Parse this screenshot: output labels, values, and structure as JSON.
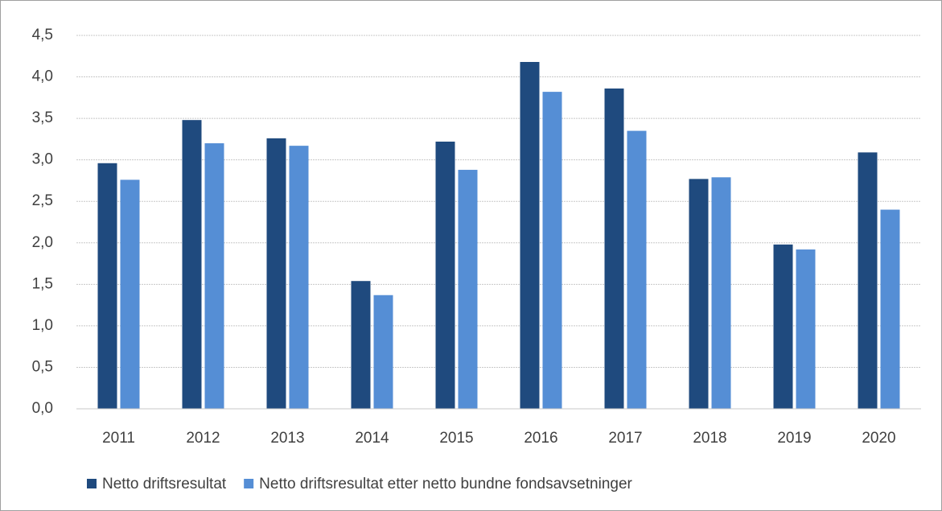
{
  "chart_data": {
    "type": "bar",
    "categories": [
      "2011",
      "2012",
      "2013",
      "2014",
      "2015",
      "2016",
      "2017",
      "2018",
      "2019",
      "2020"
    ],
    "series": [
      {
        "name": "Netto driftsresultat",
        "color": "#1f4a7e",
        "values": [
          2.96,
          3.48,
          3.26,
          1.54,
          3.22,
          4.18,
          3.86,
          2.77,
          1.98,
          3.09
        ]
      },
      {
        "name": "Netto driftsresultat etter netto bundne fondsavsetninger",
        "color": "#558ed5",
        "values": [
          2.76,
          3.2,
          3.17,
          1.37,
          2.88,
          3.82,
          3.35,
          2.79,
          1.92,
          2.4
        ]
      }
    ],
    "ylim": [
      0,
      4.5
    ],
    "yticks": [
      {
        "value": 0,
        "label": "0,0"
      },
      {
        "value": 0.5,
        "label": "0,5"
      },
      {
        "value": 1,
        "label": "1,0"
      },
      {
        "value": 1.5,
        "label": "1,5"
      },
      {
        "value": 2,
        "label": "2,0"
      },
      {
        "value": 2.5,
        "label": "2,5"
      },
      {
        "value": 3,
        "label": "3,0"
      },
      {
        "value": 3.5,
        "label": "3,5"
      },
      {
        "value": 4,
        "label": "4,0"
      },
      {
        "value": 4.5,
        "label": "4,5"
      }
    ],
    "grid": true,
    "legend": "bottom"
  }
}
